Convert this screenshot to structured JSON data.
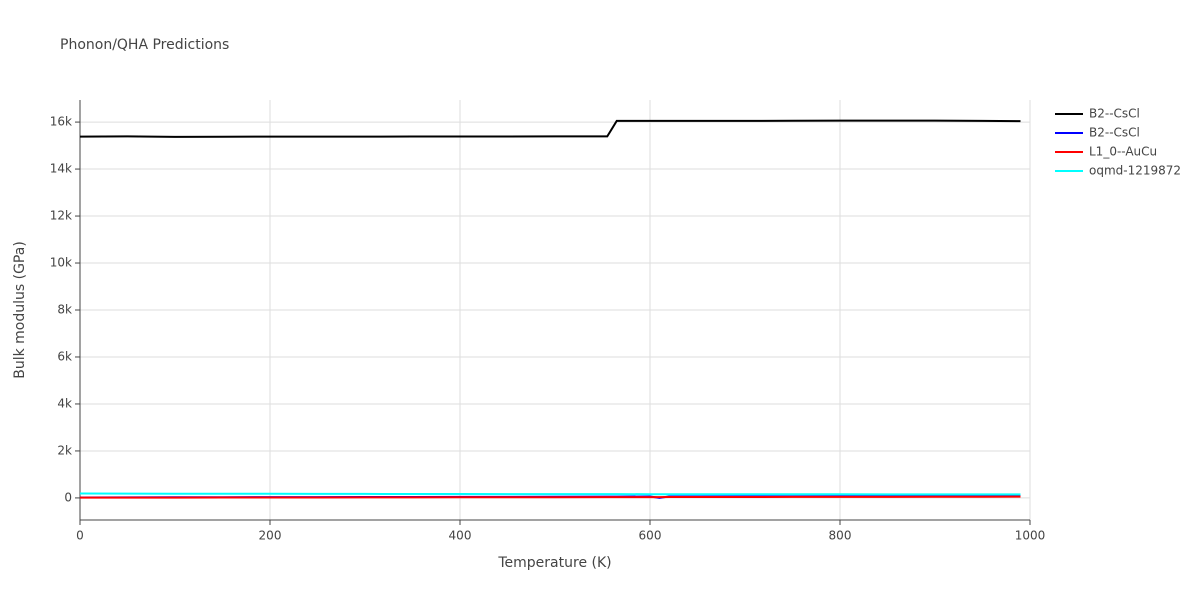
{
  "chart_data": {
    "type": "line",
    "title": "Phonon/QHA Predictions",
    "x_label": "Temperature (K)",
    "y_label": "Bulk modulus (GPa)",
    "x": [
      0,
      50,
      100,
      150,
      200,
      250,
      300,
      350,
      400,
      450,
      500,
      555,
      565,
      600,
      610,
      620,
      650,
      700,
      750,
      800,
      850,
      900,
      950,
      990
    ],
    "series": [
      {
        "name": "B2--CsCl",
        "color": "#000000",
        "values": [
          15380,
          15390,
          15370,
          15375,
          15380,
          15380,
          15380,
          15385,
          15385,
          15385,
          15390,
          15390,
          16050,
          16050,
          16050,
          16050,
          16050,
          16050,
          16055,
          16060,
          16060,
          16060,
          16050,
          16040
        ]
      },
      {
        "name": "B2--CsCl",
        "color": "#0000ff",
        "values": [
          20,
          25,
          30,
          30,
          35,
          35,
          40,
          40,
          45,
          45,
          50,
          55,
          55,
          60,
          0,
          60,
          60,
          65,
          65,
          70,
          70,
          75,
          75,
          80
        ]
      },
      {
        "name": "L1_0--AuCu",
        "color": "#ff0000",
        "values": [
          10,
          12,
          14,
          16,
          18,
          20,
          22,
          24,
          26,
          28,
          30,
          32,
          33,
          35,
          36,
          37,
          38,
          40,
          42,
          44,
          46,
          48,
          50,
          55
        ]
      },
      {
        "name": "oqmd-1219872",
        "color": "#00ffff",
        "values": [
          190,
          185,
          180,
          178,
          175,
          172,
          170,
          168,
          166,
          164,
          162,
          160,
          160,
          158,
          158,
          158,
          157,
          156,
          155,
          154,
          153,
          152,
          151,
          150
        ]
      }
    ],
    "xlim": [
      0,
      1000
    ],
    "xticks": [
      0,
      200,
      400,
      600,
      800,
      1000
    ],
    "ylim": [
      -940,
      16940
    ],
    "yticks": [
      0,
      {
        "value": 2000,
        "label": "2k"
      },
      {
        "value": 4000,
        "label": "4k"
      },
      {
        "value": 6000,
        "label": "6k"
      },
      {
        "value": 8000,
        "label": "8k"
      },
      {
        "value": 10000,
        "label": "10k"
      },
      {
        "value": 12000,
        "label": "12k"
      },
      {
        "value": 14000,
        "label": "14k"
      },
      {
        "value": 16000,
        "label": "16k"
      }
    ],
    "grid": true,
    "legend": "right"
  }
}
